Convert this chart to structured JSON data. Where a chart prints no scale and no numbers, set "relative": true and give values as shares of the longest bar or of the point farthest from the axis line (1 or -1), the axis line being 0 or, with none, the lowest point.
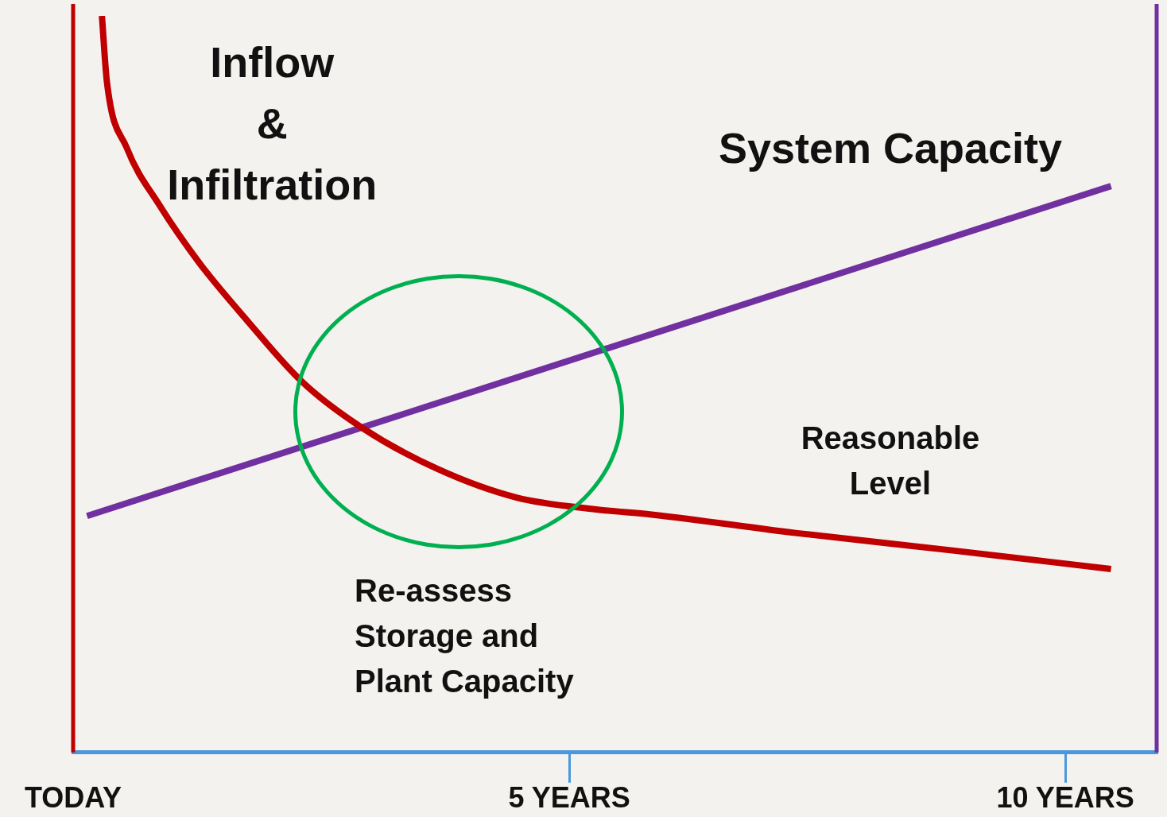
{
  "chart_data": {
    "type": "line",
    "relative": true,
    "xlim": [
      0,
      10.92
    ],
    "xticks": [
      {
        "value": 0,
        "label": "TODAY"
      },
      {
        "value": 5,
        "label": "5 YEARS"
      },
      {
        "value": 10,
        "label": "10 YEARS"
      }
    ],
    "series": [
      {
        "name": "Inflow & Infiltration",
        "color": "#c00000",
        "x": [
          0.29,
          0.34,
          0.54,
          0.87,
          1.27,
          1.75,
          2.31,
          2.91,
          3.67,
          4.47,
          5.27,
          5.83,
          7.28,
          8.88,
          10.46
        ],
        "values": [
          1.0,
          0.911,
          0.821,
          0.743,
          0.665,
          0.587,
          0.503,
          0.441,
          0.385,
          0.346,
          0.33,
          0.323,
          0.298,
          0.274,
          0.249
        ]
      },
      {
        "name": "System Capacity",
        "color": "#7030a0",
        "x": [
          0.14,
          10.46
        ],
        "values": [
          0.321,
          0.769
        ]
      }
    ],
    "annotations": [
      "Reasonable Level",
      "Re-assess Storage and Plant Capacity"
    ],
    "grid": false,
    "legend": false
  }
}
